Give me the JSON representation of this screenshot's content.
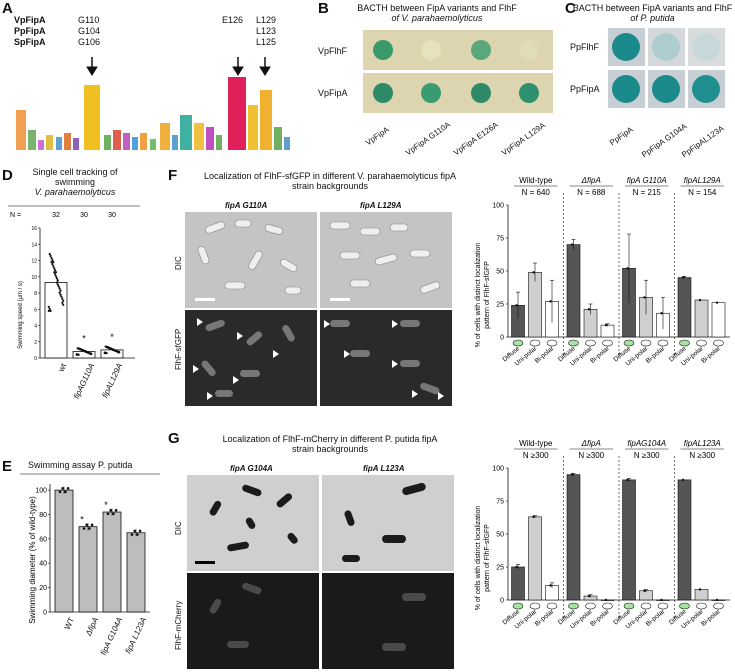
{
  "panelA": {
    "label": "A",
    "rows": [
      {
        "name": "VpFipA",
        "p1": "G110",
        "p2": "E126",
        "p3": "L129"
      },
      {
        "name": "PpFipA",
        "p1": "G104",
        "p2": "",
        "p3": "L123"
      },
      {
        "name": "SpFipA",
        "p1": "G106",
        "p2": "",
        "p3": "L125"
      }
    ]
  },
  "panelB": {
    "label": "B",
    "title_line1": "BACTH between FipA variants and FlhF",
    "title_line2": "of V. parahaemolyticus",
    "rows": [
      "VpFlhF",
      "VpFipA"
    ],
    "columns": [
      "VpFipA",
      "VpFipA G110A",
      "VpFipA E126A",
      "VpFipA L129A"
    ]
  },
  "panelC": {
    "label": "C",
    "title_line1": "BACTH between FipA variants and FlhF",
    "title_line2": "of P. putida",
    "rows": [
      "PpFlhF",
      "PpFipA"
    ],
    "columns": [
      "PpFipA",
      "PpFipA G104A",
      "PpFipAL123A"
    ]
  },
  "panelD": {
    "label": "D",
    "title_line1": "Single cell tracking of",
    "title_line2": "swimming",
    "title_line3": "V. parahaemolyticus",
    "n_label": "N =",
    "n_values": [
      "32",
      "30",
      "30"
    ],
    "ylabel": "Swimming speed (µm / s)",
    "yticks": [
      "0",
      "2",
      "4",
      "6",
      "8",
      "10",
      "12",
      "14",
      "16"
    ],
    "categories": [
      "wt",
      "fipAG110A",
      "fipAL129A"
    ],
    "star": "*"
  },
  "panelE": {
    "label": "E",
    "title": "Swimming assay P. putida",
    "ylabel": "Swimming diameter (% of wild-type)",
    "yticks": [
      "0",
      "20",
      "40",
      "60",
      "80",
      "100"
    ],
    "categories": [
      "WT",
      "ΔfipA",
      "fipA G104A",
      "fipA L123A"
    ],
    "star": "*"
  },
  "panelF": {
    "label": "F",
    "title_line1": "Localization of FlhF-sfGFP in different V. parahaemolyticus fipA",
    "title_line2": "strain backgrounds",
    "col1": "fipA G110A",
    "col2": "fipA L129A",
    "row1": "DIC",
    "row2": "FlhF-sfGFP",
    "groups": [
      {
        "name": "Wild-type",
        "n": "N = 640"
      },
      {
        "name": "ΔfipA",
        "n": "N = 688"
      },
      {
        "name": "fipA G110A",
        "n": "N = 215"
      },
      {
        "name": "fipAL129A",
        "n": "N = 154"
      }
    ],
    "ylabel_line1": "% of cells with distinct localization",
    "ylabel_line2": "pattern of FlhF-sfGFP",
    "yticks": [
      "0",
      "25",
      "50",
      "75",
      "100"
    ],
    "xcats": [
      "Diffuse",
      "Uni-polar",
      "Bi-polar"
    ]
  },
  "panelG": {
    "label": "G",
    "title_line1": "Localization of FlhF-mCherry in different P. putida fipA",
    "title_line2": "strain backgrounds",
    "col1": "fipA G104A",
    "col2": "fipA L123A",
    "row1": "DIC",
    "row2": "FlhF-mCherry",
    "groups": [
      {
        "name": "Wild-type",
        "n": "N ≥300"
      },
      {
        "name": "ΔfipA",
        "n": "N ≥300"
      },
      {
        "name": "fipAG104A",
        "n": "N ≥300"
      },
      {
        "name": "fipAL123A",
        "n": "N ≥300"
      }
    ],
    "ylabel_line1": "% of cells with distinct localization",
    "ylabel_line2": "pattern of FlhF-sfGFP",
    "yticks": [
      "0",
      "25",
      "50",
      "75",
      "100"
    ],
    "xcats": [
      "Diffuse",
      "Uni-polar",
      "Bi-polar"
    ]
  },
  "chart_data": [
    {
      "type": "bar",
      "panel": "D",
      "categories": [
        "wt",
        "fipAG110A",
        "fipAL129A"
      ],
      "values": [
        9.3,
        0.8,
        1.0
      ],
      "ylim": [
        0,
        16
      ],
      "ylabel": "Swimming speed (µm / s)"
    },
    {
      "type": "bar",
      "panel": "E",
      "categories": [
        "WT",
        "ΔfipA",
        "fipA G104A",
        "fipA L123A"
      ],
      "values": [
        100,
        70,
        82,
        65
      ],
      "ylim": [
        0,
        105
      ],
      "ylabel": "Swimming diameter (% of wild-type)"
    },
    {
      "type": "bar",
      "panel": "F",
      "categories": [
        "Diffuse",
        "Uni-polar",
        "Bi-polar"
      ],
      "series": [
        {
          "name": "Wild-type",
          "values": [
            24,
            49,
            27
          ],
          "errors": [
            10,
            7,
            16
          ]
        },
        {
          "name": "ΔfipA",
          "values": [
            70,
            21,
            9
          ],
          "errors": [
            4,
            4,
            1
          ]
        },
        {
          "name": "fipA G110A",
          "values": [
            52,
            30,
            18
          ],
          "errors": [
            26,
            13,
            12
          ]
        },
        {
          "name": "fipAL129A",
          "values": [
            45,
            28,
            26
          ],
          "errors": [
            1,
            0,
            0
          ]
        }
      ],
      "ylim": [
        0,
        100
      ]
    },
    {
      "type": "bar",
      "panel": "G",
      "categories": [
        "Diffuse",
        "Uni-polar",
        "Bi-polar"
      ],
      "series": [
        {
          "name": "Wild-type",
          "values": [
            25,
            63,
            11
          ],
          "errors": [
            2,
            1,
            2
          ]
        },
        {
          "name": "ΔfipA",
          "values": [
            95,
            3,
            0
          ],
          "errors": [
            1,
            1,
            0
          ]
        },
        {
          "name": "fipAG104A",
          "values": [
            91,
            7,
            0
          ],
          "errors": [
            1,
            1,
            0
          ]
        },
        {
          "name": "fipAL123A",
          "values": [
            91,
            8,
            0
          ],
          "errors": [
            0,
            0,
            0
          ]
        }
      ],
      "ylim": [
        0,
        100
      ]
    }
  ]
}
